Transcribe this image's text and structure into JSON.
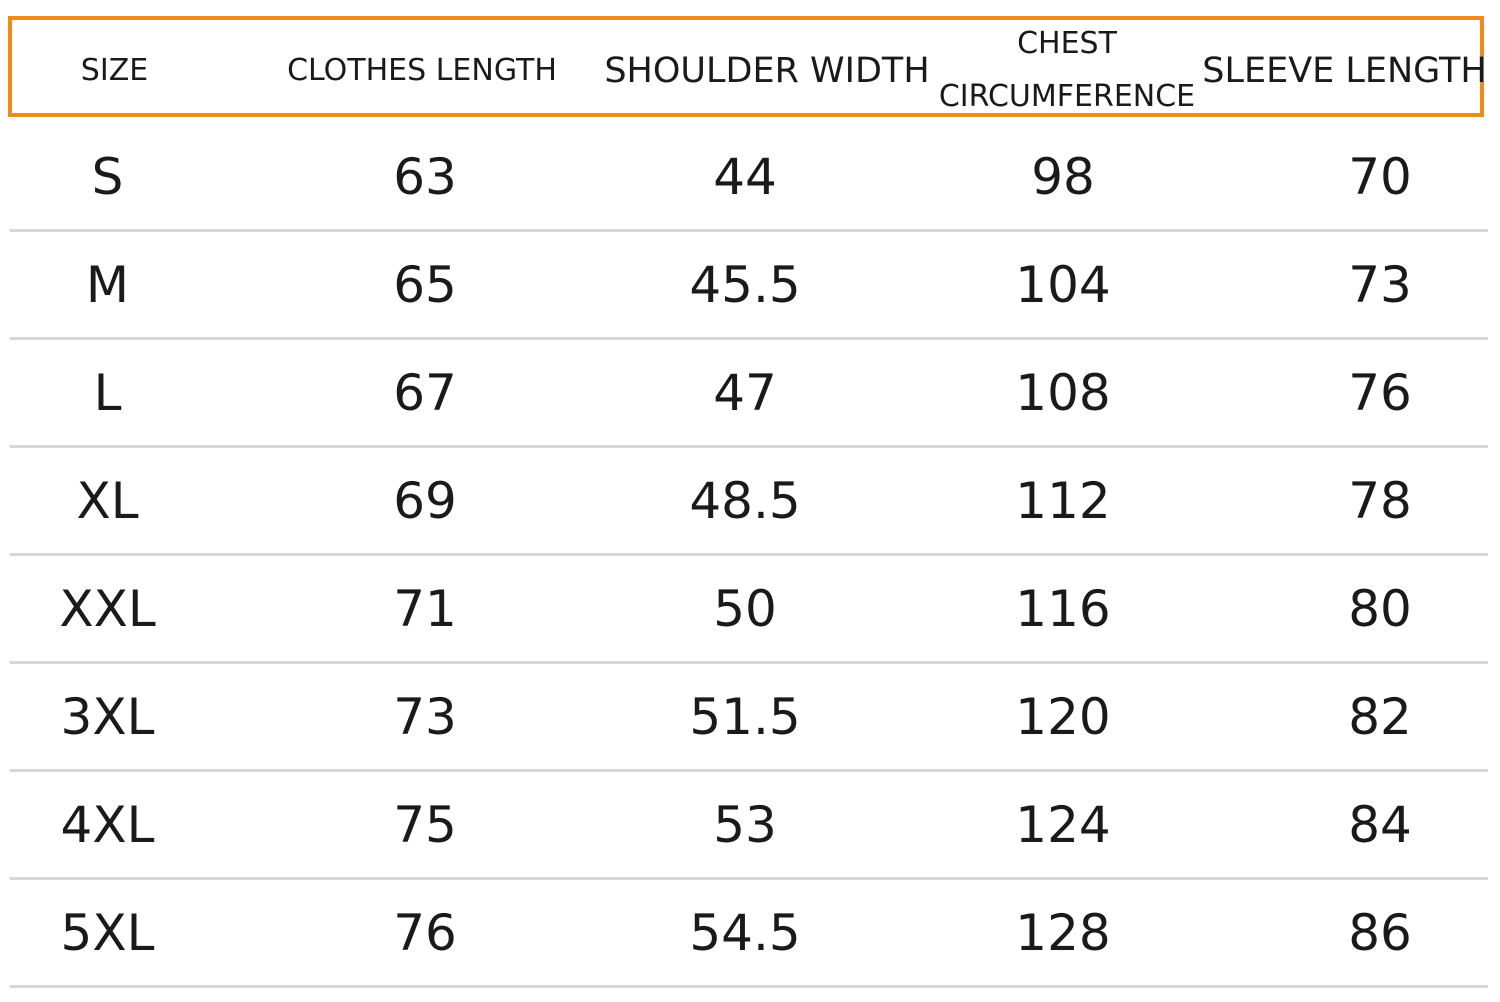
{
  "table": {
    "headers": [
      {
        "label": "SIZE"
      },
      {
        "label": "CLOTHES LENGTH"
      },
      {
        "label": "SHOULDER WIDTH"
      },
      {
        "line1": "CHEST",
        "line2": "CIRCUMFERENCE"
      },
      {
        "label": "SLEEVE LENGTH"
      }
    ],
    "rows": [
      [
        "S",
        "63",
        "44",
        "98",
        "70"
      ],
      [
        "M",
        "65",
        "45.5",
        "104",
        "73"
      ],
      [
        "L",
        "67",
        "47",
        "108",
        "76"
      ],
      [
        "XL",
        "69",
        "48.5",
        "112",
        "78"
      ],
      [
        "XXL",
        "71",
        "50",
        "116",
        "80"
      ],
      [
        "3XL",
        "73",
        "51.5",
        "120",
        "82"
      ],
      [
        "4XL",
        "75",
        "53",
        "124",
        "84"
      ],
      [
        "5XL",
        "76",
        "54.5",
        "128",
        "86"
      ]
    ]
  },
  "colors": {
    "header_border": "#f08a1c",
    "row_divider": "#d6d6d6",
    "text": "#1a1a1a"
  }
}
